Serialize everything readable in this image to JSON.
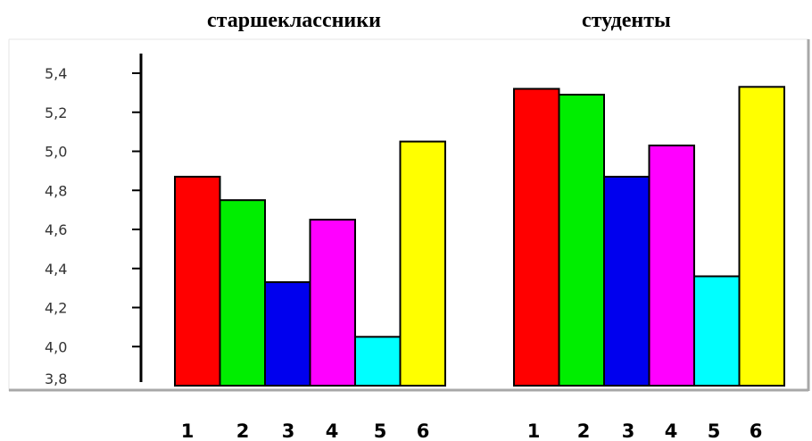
{
  "chart_data": {
    "type": "bar",
    "groups": [
      {
        "title": "старшеклассники",
        "categories": [
          "1",
          "2",
          "3",
          "4",
          "5",
          "6"
        ],
        "values": [
          4.87,
          4.75,
          4.33,
          4.65,
          4.05,
          5.05
        ]
      },
      {
        "title": "студенты",
        "categories": [
          "1",
          "2",
          "3",
          "4",
          "5",
          "6"
        ],
        "values": [
          5.32,
          5.29,
          4.87,
          5.03,
          4.36,
          5.33
        ]
      }
    ],
    "bar_colors": [
      "#ff0000",
      "#00ee00",
      "#0000ee",
      "#ff00ff",
      "#00ffff",
      "#ffff00"
    ],
    "y_ticks": [
      "3,8",
      "4,0",
      "4,2",
      "4,4",
      "4,6",
      "4,8",
      "5,0",
      "5,2",
      "5,4"
    ],
    "ylim": [
      3.8,
      5.4
    ],
    "grid": false,
    "legend": "none"
  }
}
